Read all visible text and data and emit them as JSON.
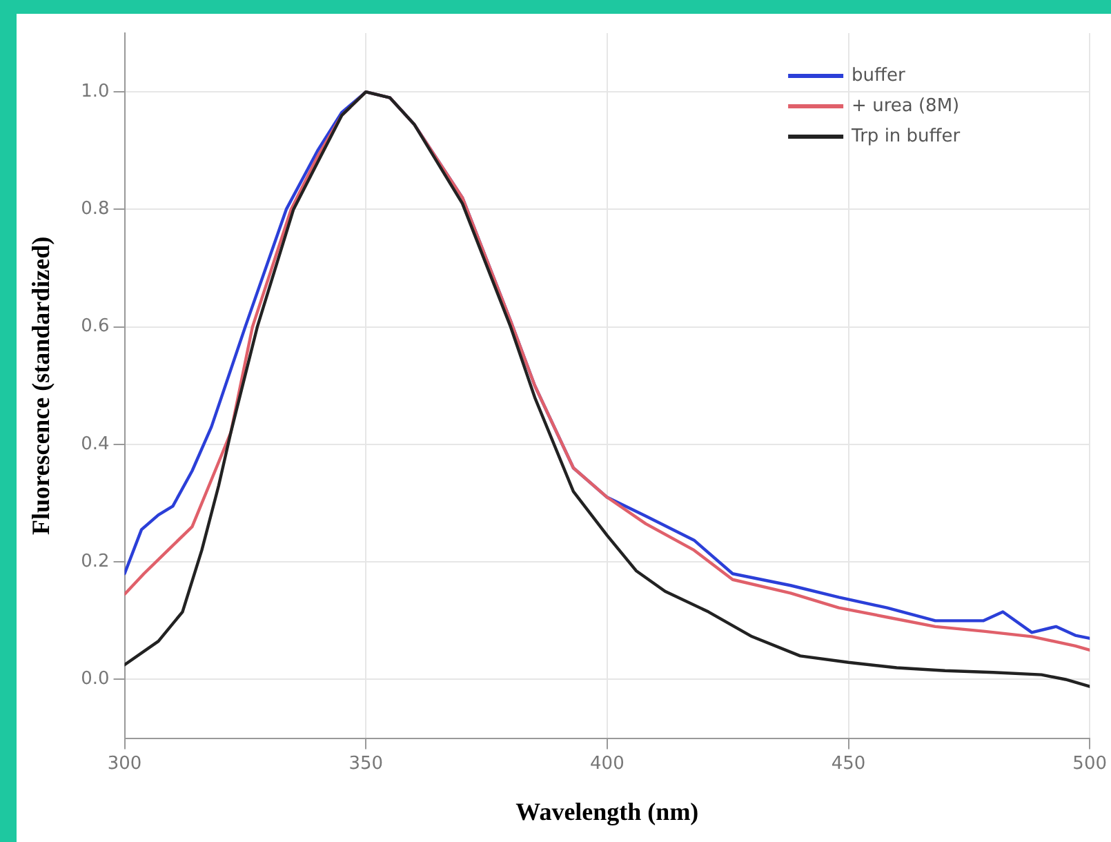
{
  "chart_data": {
    "type": "line",
    "xlabel": "Wavelength (nm)",
    "ylabel": "Fluorescence (standardized)",
    "xlim": [
      300,
      500
    ],
    "xticks": [
      300,
      350,
      400,
      450,
      500
    ],
    "ylim": [
      -0.1,
      1.1
    ],
    "yticks": [
      {
        "value": 0,
        "label": "0.0"
      },
      {
        "value": 0.2,
        "label": "0.2"
      },
      {
        "value": 0.4,
        "label": "0.4"
      },
      {
        "value": 0.6,
        "label": "0.6"
      },
      {
        "value": 0.8,
        "label": "0.8"
      },
      {
        "value": 1,
        "label": "1.0"
      }
    ],
    "grid": true,
    "legend": "top right",
    "marker": "none",
    "line_style": "solid",
    "series": [
      {
        "name": "buffer",
        "color": "#2b3fd8",
        "x": [
          300,
          303.5,
          307,
          310,
          314,
          318,
          325,
          333.5,
          340,
          345,
          350,
          355,
          360,
          370,
          380,
          385,
          393,
          400,
          408,
          418,
          426,
          438,
          448,
          458,
          468,
          478,
          482,
          488,
          493,
          497,
          500
        ],
        "values": [
          0.18,
          0.255,
          0.28,
          0.295,
          0.355,
          0.43,
          0.6,
          0.8,
          0.9,
          0.965,
          1.0,
          0.99,
          0.945,
          0.82,
          0.61,
          0.5,
          0.36,
          0.31,
          0.278,
          0.237,
          0.18,
          0.16,
          0.14,
          0.122,
          0.1,
          0.1,
          0.115,
          0.08,
          0.09,
          0.075,
          0.07
        ]
      },
      {
        "name": "+ urea (8M)",
        "color": "#e0606a",
        "x": [
          300,
          304,
          309,
          314,
          319,
          322,
          326.5,
          334.5,
          340,
          345,
          350,
          355,
          360,
          370,
          380,
          385,
          393,
          400,
          408,
          418,
          426,
          438,
          448,
          458,
          468,
          478,
          488,
          497,
          500
        ],
        "values": [
          0.145,
          0.18,
          0.22,
          0.26,
          0.36,
          0.42,
          0.6,
          0.8,
          0.89,
          0.96,
          1.0,
          0.99,
          0.945,
          0.82,
          0.61,
          0.5,
          0.36,
          0.31,
          0.265,
          0.22,
          0.17,
          0.147,
          0.122,
          0.106,
          0.09,
          0.082,
          0.073,
          0.057,
          0.05
        ]
      },
      {
        "name": "Trp in buffer",
        "color": "#222222",
        "x": [
          300,
          307,
          312,
          316,
          319.5,
          322,
          327.5,
          335,
          340,
          345,
          350,
          355,
          360,
          370,
          380,
          385,
          393,
          400,
          406,
          412,
          421,
          430,
          440,
          450,
          460,
          470,
          480,
          490,
          495,
          500
        ],
        "values": [
          0.025,
          0.065,
          0.115,
          0.22,
          0.33,
          0.42,
          0.6,
          0.8,
          0.88,
          0.96,
          1.0,
          0.99,
          0.945,
          0.81,
          0.6,
          0.48,
          0.32,
          0.245,
          0.185,
          0.15,
          0.115,
          0.073,
          0.04,
          0.029,
          0.02,
          0.015,
          0.012,
          0.008,
          0,
          -0.012
        ]
      }
    ]
  }
}
